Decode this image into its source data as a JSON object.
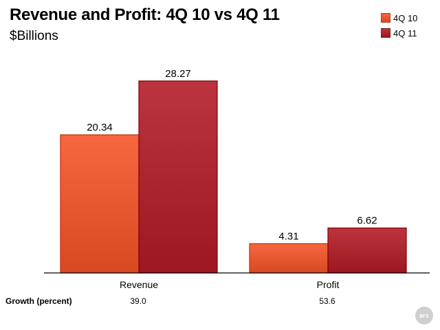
{
  "colors": {
    "series_4q10": "#e4552e",
    "series_4q11": "#a9222c"
  },
  "chart_data": {
    "type": "bar",
    "title": "Revenue and Profit: 4Q 10 vs 4Q 11",
    "subtitle": "$Billions",
    "categories": [
      "Revenue",
      "Profit"
    ],
    "series": [
      {
        "name": "4Q 10",
        "values": [
          20.34,
          4.31
        ],
        "labels": [
          "20.34",
          "4.31"
        ]
      },
      {
        "name": "4Q 11",
        "values": [
          28.27,
          6.62
        ],
        "labels": [
          "28.27",
          "6.62"
        ]
      }
    ],
    "ylim": [
      0,
      32.5
    ],
    "grid": false,
    "legend_position": "top-right",
    "growth": {
      "label": "Growth (percent)",
      "values": [
        "39.0",
        "53.6"
      ]
    }
  },
  "logo": {
    "text": "ars"
  }
}
